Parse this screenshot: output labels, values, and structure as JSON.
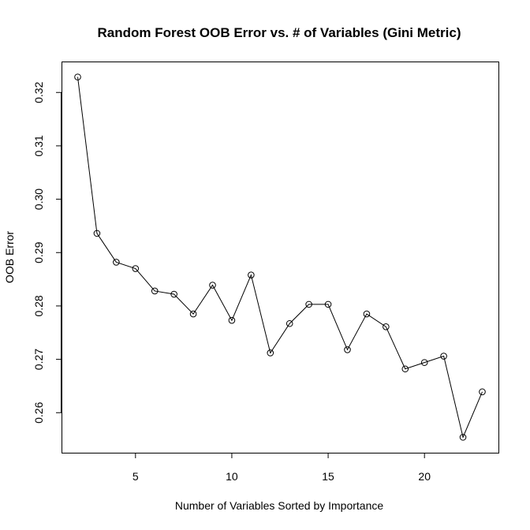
{
  "chart_data": {
    "type": "line",
    "title": "Random Forest OOB Error vs. # of Variables (Gini Metric)",
    "xlabel": "Number of Variables Sorted by Importance",
    "ylabel": "OOB Error",
    "x": [
      2,
      3,
      4,
      5,
      6,
      7,
      8,
      9,
      10,
      11,
      12,
      13,
      14,
      15,
      16,
      17,
      18,
      19,
      20,
      21,
      22,
      23
    ],
    "series": [
      {
        "values": [
          0.3229,
          0.2936,
          0.2882,
          0.287,
          0.2828,
          0.2822,
          0.2785,
          0.2839,
          0.2773,
          0.2858,
          0.2712,
          0.2767,
          0.2803,
          0.2803,
          0.2718,
          0.2785,
          0.2761,
          0.2682,
          0.2694,
          0.2706,
          0.2554,
          0.2639
        ]
      }
    ],
    "xlim": [
      1.16,
      23.84
    ],
    "ylim": [
      0.2525,
      0.3258
    ],
    "xticks": [
      5,
      10,
      15,
      20
    ],
    "yticks": [
      0.26,
      0.27,
      0.28,
      0.29,
      0.3,
      0.31,
      0.32
    ],
    "xtick_labels": [
      "5",
      "10",
      "15",
      "20"
    ],
    "ytick_labels": [
      "0.26",
      "0.27",
      "0.28",
      "0.29",
      "0.30",
      "0.31",
      "0.32"
    ],
    "marker": "open-circle",
    "grid": false,
    "legend": "none"
  }
}
